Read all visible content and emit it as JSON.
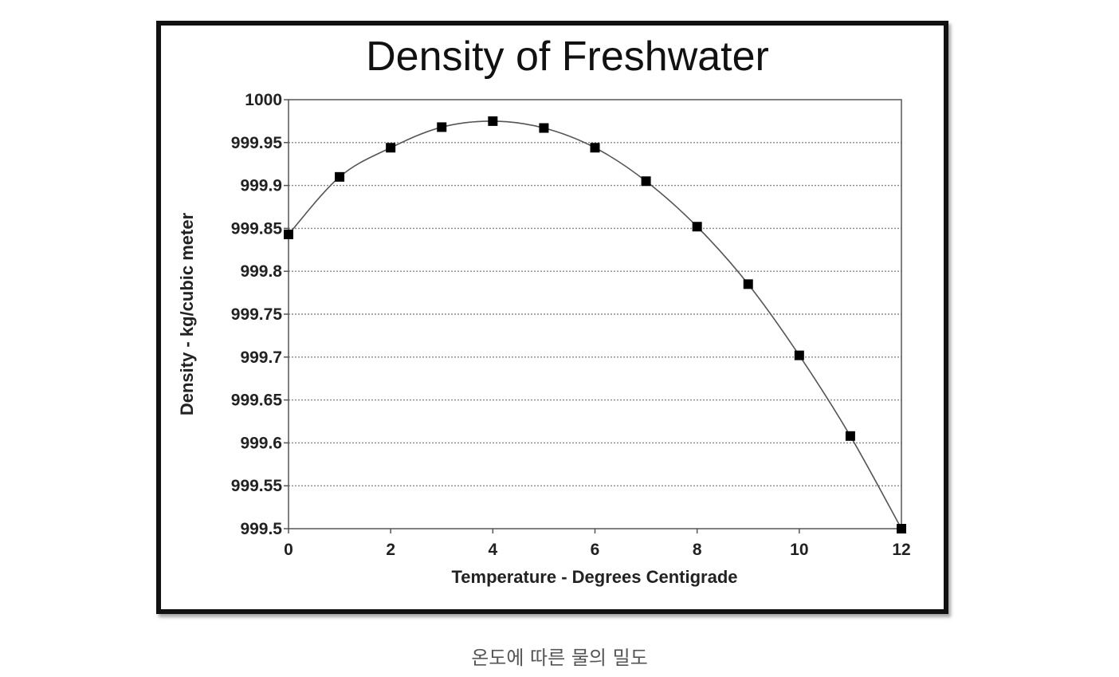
{
  "caption": "온도에 따른 물의 밀도",
  "chart_data": {
    "type": "line",
    "title": "Density of Freshwater",
    "xlabel": "Temperature - Degrees Centigrade",
    "ylabel": "Density - kg/cubic meter",
    "xlim": [
      0,
      12
    ],
    "ylim": [
      999.5,
      1000
    ],
    "x_ticks": [
      "0",
      "2",
      "4",
      "6",
      "8",
      "10",
      "12"
    ],
    "x_tick_values": [
      0,
      2,
      4,
      6,
      8,
      10,
      12
    ],
    "y_ticks": [
      "1000",
      "999.95",
      "999.9",
      "999.85",
      "999.8",
      "999.75",
      "999.7",
      "999.65",
      "999.6",
      "999.55",
      "999.5"
    ],
    "y_tick_values": [
      1000,
      999.95,
      999.9,
      999.85,
      999.8,
      999.75,
      999.7,
      999.65,
      999.6,
      999.55,
      999.5
    ],
    "grid": "horizontal dotted",
    "marker": "square",
    "line_color": "#555555",
    "marker_color": "#000000",
    "series": [
      {
        "x": [
          0,
          1,
          2,
          3,
          4,
          5,
          6,
          7,
          8,
          9,
          10,
          11,
          12
        ],
        "y": [
          999.843,
          999.91,
          999.944,
          999.968,
          999.975,
          999.967,
          999.944,
          999.905,
          999.852,
          999.785,
          999.702,
          999.608,
          999.5
        ]
      }
    ]
  }
}
